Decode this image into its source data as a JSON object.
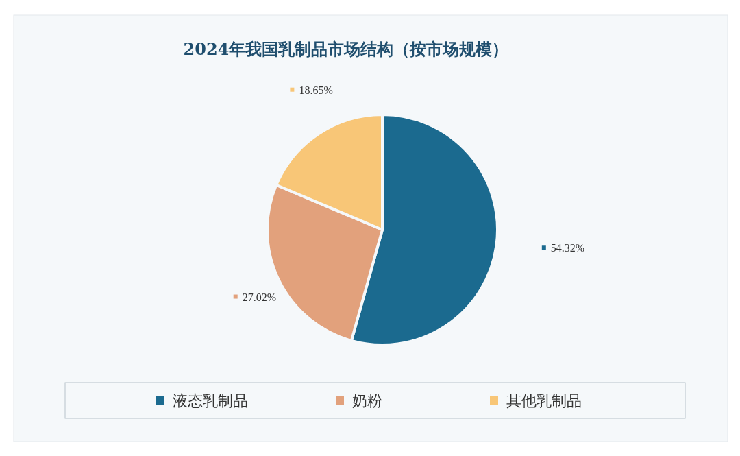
{
  "chart_data": {
    "type": "pie",
    "title": "2024年我国乳制品市场结构（按市场规模）",
    "categories": [
      "液态乳制品",
      "奶粉",
      "其他乳制品"
    ],
    "values": [
      54.32,
      27.02,
      18.65
    ],
    "value_labels": [
      "54.32%",
      "27.02%",
      "18.65%"
    ],
    "colors": [
      "#1b6a8f",
      "#e2a17c",
      "#f8c677"
    ],
    "legend": "bottom"
  }
}
